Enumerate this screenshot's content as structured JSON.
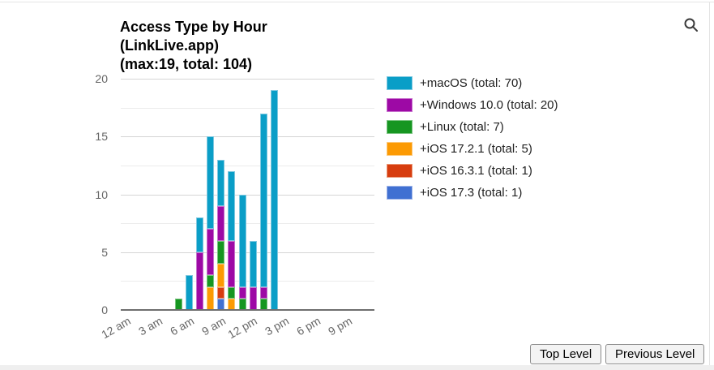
{
  "search": {
    "icon": "magnifier"
  },
  "chart_data": {
    "type": "bar",
    "stacked": true,
    "title": "Access Type by Hour (LinkLive.app) (max:19, total: 104)",
    "title_lines": [
      "Access Type by Hour",
      "(LinkLive.app)",
      "(max:19, total: 104)"
    ],
    "max": 19,
    "total": 104,
    "categories": [
      "12 am",
      "1 am",
      "2 am",
      "3 am",
      "4 am",
      "5 am",
      "6 am",
      "7 am",
      "8 am",
      "9 am",
      "10 am",
      "11 am",
      "12 pm",
      "1 pm",
      "2 pm",
      "3 pm",
      "4 pm",
      "5 pm",
      "6 pm",
      "7 pm",
      "8 pm",
      "9 pm",
      "10 pm",
      "11 pm"
    ],
    "x_tick_labels": [
      "12 am",
      "3 am",
      "6 am",
      "9 am",
      "12 pm",
      "3 pm",
      "6 pm",
      "9 pm"
    ],
    "y_ticks": [
      0,
      5,
      10,
      15,
      20
    ],
    "ylim": [
      0,
      20
    ],
    "gridline_step": 2.5,
    "grid": true,
    "legend_position": "right",
    "stack_order_bottom_to_top": [
      "+iOS 17.3",
      "+iOS 16.3.1",
      "+iOS 17.2.1",
      "+Linux",
      "+Windows 10.0",
      "+macOS"
    ],
    "series": [
      {
        "name": "+macOS",
        "legend_label": "+macOS (total: 70)",
        "total": 70,
        "color": "#0a9ec7",
        "border_color": "#7fc8e0",
        "values": [
          0,
          0,
          0,
          0,
          0,
          0,
          3,
          3,
          8,
          4,
          6,
          8,
          4,
          15,
          19,
          0,
          0,
          0,
          0,
          0,
          0,
          0,
          0,
          0
        ]
      },
      {
        "name": "+Windows 10.0",
        "legend_label": "+Windows 10.0 (total: 20)",
        "total": 20,
        "color": "#9d09a5",
        "border_color": "#c76fcc",
        "values": [
          0,
          0,
          0,
          0,
          0,
          0,
          0,
          5,
          4,
          3,
          4,
          1,
          2,
          1,
          0,
          0,
          0,
          0,
          0,
          0,
          0,
          0,
          0,
          0
        ]
      },
      {
        "name": "+Linux",
        "legend_label": "+Linux (total: 7)",
        "total": 7,
        "color": "#169621",
        "border_color": "#78c37f",
        "values": [
          0,
          0,
          0,
          0,
          0,
          1,
          0,
          0,
          1,
          2,
          1,
          1,
          0,
          1,
          0,
          0,
          0,
          0,
          0,
          0,
          0,
          0,
          0,
          0
        ]
      },
      {
        "name": "+iOS 17.2.1",
        "legend_label": "+iOS 17.2.1 (total: 5)",
        "total": 5,
        "color": "#fc9a03",
        "border_color": "#fdc878",
        "values": [
          0,
          0,
          0,
          0,
          0,
          0,
          0,
          0,
          2,
          2,
          1,
          0,
          0,
          0,
          0,
          0,
          0,
          0,
          0,
          0,
          0,
          0,
          0,
          0
        ]
      },
      {
        "name": "+iOS 16.3.1",
        "legend_label": "+iOS 16.3.1 (total: 1)",
        "total": 1,
        "color": "#d73d0f",
        "border_color": "#ea9878",
        "values": [
          0,
          0,
          0,
          0,
          0,
          0,
          0,
          0,
          0,
          1,
          0,
          0,
          0,
          0,
          0,
          0,
          0,
          0,
          0,
          0,
          0,
          0,
          0,
          0
        ]
      },
      {
        "name": "+iOS 17.3",
        "legend_label": "+iOS 17.3 (total: 1)",
        "total": 1,
        "color": "#4070d2",
        "border_color": "#9fb5e8",
        "values": [
          0,
          0,
          0,
          0,
          0,
          0,
          0,
          0,
          0,
          1,
          0,
          0,
          0,
          0,
          0,
          0,
          0,
          0,
          0,
          0,
          0,
          0,
          0,
          0
        ]
      }
    ]
  },
  "footer": {
    "buttons": [
      {
        "label": "Top Level"
      },
      {
        "label": "Previous Level"
      }
    ]
  }
}
